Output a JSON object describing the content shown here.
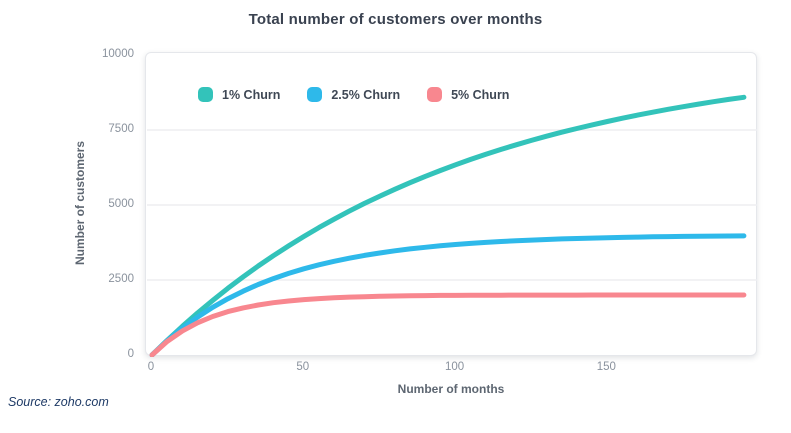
{
  "source": "Source: zoho.com",
  "colors": {
    "series_teal": "#33c3ba",
    "series_blue": "#2eb9ea",
    "series_pink": "#f8878f",
    "gridline": "#ededf1",
    "plot_border": "#e5e7eb",
    "title_text": "#3a4250",
    "axis_title_text": "#5d6671",
    "tick_text": "#8a929d"
  },
  "chart_data": {
    "type": "line",
    "title": "Total number of customers over months",
    "xlabel": "Number of months",
    "ylabel": "Number of customers",
    "xlim": [
      0,
      200
    ],
    "ylim": [
      0,
      10000
    ],
    "x_ticks": [
      0,
      50,
      100,
      150
    ],
    "y_ticks": [
      0,
      2500,
      5000,
      7500,
      10000
    ],
    "grid": "horizontal",
    "legend_position": "top-left-inside",
    "x": [
      0,
      5,
      10,
      15,
      20,
      25,
      30,
      35,
      40,
      45,
      50,
      55,
      60,
      65,
      70,
      75,
      80,
      85,
      90,
      95,
      100,
      105,
      110,
      115,
      120,
      125,
      130,
      135,
      140,
      145,
      150,
      155,
      160,
      165,
      170,
      175,
      180,
      185,
      190,
      195
    ],
    "series": [
      {
        "name": "1% Churn",
        "color": "#33c3ba",
        "values": [
          0,
          490,
          956,
          1399,
          1821,
          2222,
          2603,
          2966,
          3310,
          3638,
          3950,
          4246,
          4528,
          4797,
          5052,
          5294,
          5525,
          5744,
          5953,
          6151,
          6340,
          6519,
          6690,
          6852,
          7006,
          7153,
          7293,
          7425,
          7551,
          7671,
          7785,
          7894,
          7997,
          8095,
          8189,
          8278,
          8362,
          8442,
          8519,
          8591
        ]
      },
      {
        "name": "2.5% Churn",
        "color": "#2eb9ea",
        "values": [
          0,
          476,
          895,
          1264,
          1589,
          1876,
          2128,
          2351,
          2547,
          2720,
          2872,
          3006,
          3124,
          3228,
          3320,
          3401,
          3472,
          3535,
          3590,
          3639,
          3682,
          3720,
          3753,
          3782,
          3808,
          3831,
          3851,
          3869,
          3884,
          3898,
          3910,
          3921,
          3930,
          3939,
          3946,
          3952,
          3958,
          3963,
          3967,
          3971
        ]
      },
      {
        "name": "5% Churn",
        "color": "#f8878f",
        "values": [
          0,
          452,
          803,
          1073,
          1283,
          1445,
          1571,
          1668,
          1743,
          1801,
          1846,
          1881,
          1908,
          1929,
          1945,
          1957,
          1967,
          1974,
          1980,
          1985,
          1988,
          1991,
          1993,
          1995,
          1996,
          1997,
          1997,
          1998,
          1998,
          1999,
          1999,
          1999,
          1999,
          2000,
          2000,
          2000,
          2000,
          2000,
          2000,
          2000
        ]
      }
    ]
  }
}
